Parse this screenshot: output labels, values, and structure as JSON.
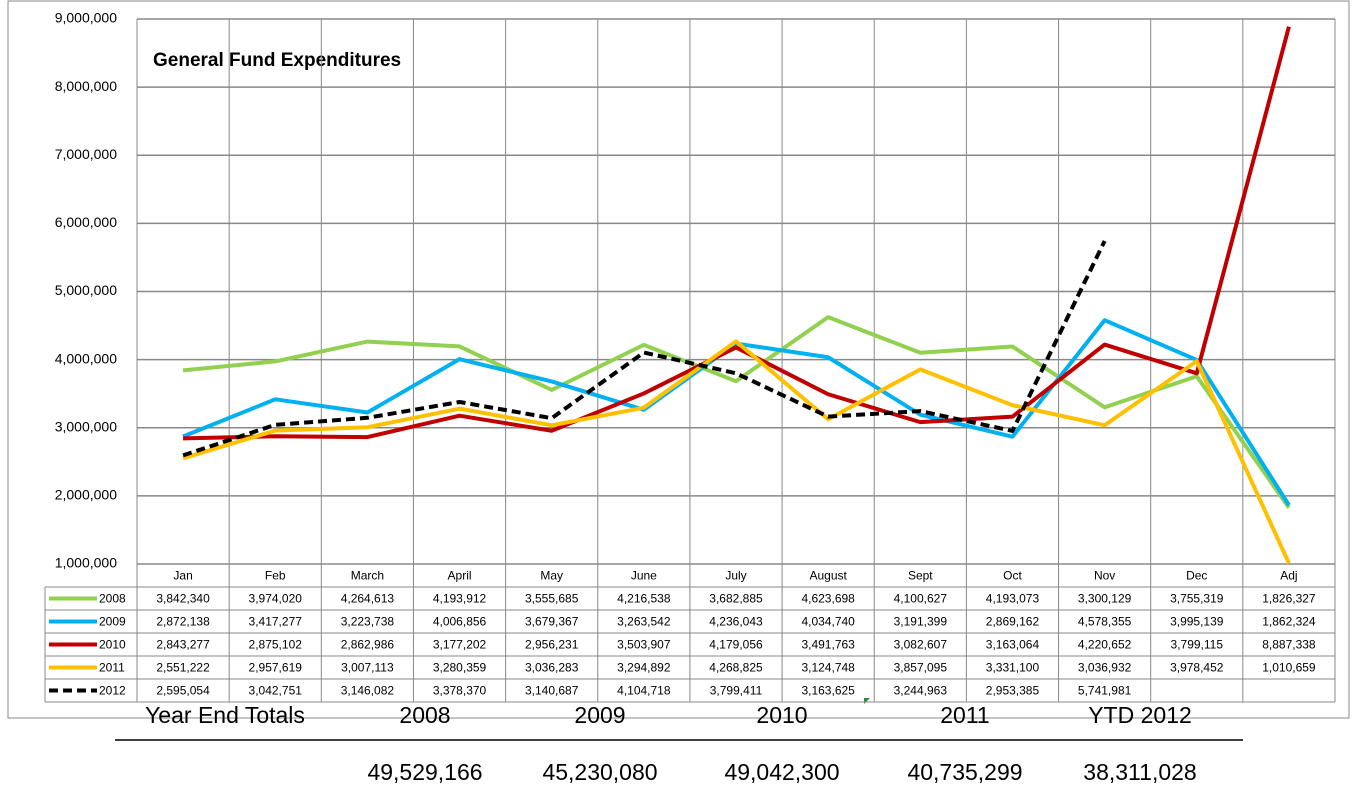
{
  "chart_data": {
    "type": "line",
    "title": "General Fund Expenditures",
    "categories": [
      "Jan",
      "Feb",
      "March",
      "April",
      "May",
      "June",
      "July",
      "August",
      "Sept",
      "Oct",
      "Nov",
      "Dec",
      "Adj"
    ],
    "series": [
      {
        "name": "2008",
        "color": "#92d050",
        "dashed": false,
        "values": [
          3842340,
          3974020,
          4264613,
          4193912,
          3555685,
          4216538,
          3682885,
          4623698,
          4100627,
          4193073,
          3300129,
          3755319,
          1826327
        ],
        "value_labels": [
          "3,842,340",
          "3,974,020",
          "4,264,613",
          "4,193,912",
          "3,555,685",
          "4,216,538",
          "3,682,885",
          "4,623,698",
          "4,100,627",
          "4,193,073",
          "3,300,129",
          "3,755,319",
          "1,826,327"
        ]
      },
      {
        "name": "2009",
        "color": "#00b0f0",
        "dashed": false,
        "values": [
          2872138,
          3417277,
          3223738,
          4006856,
          3679367,
          3263542,
          4236043,
          4034740,
          3191399,
          2869162,
          4578355,
          3995139,
          1862324
        ],
        "value_labels": [
          "2,872,138",
          "3,417,277",
          "3,223,738",
          "4,006,856",
          "3,679,367",
          "3,263,542",
          "4,236,043",
          "4,034,740",
          "3,191,399",
          "2,869,162",
          "4,578,355",
          "3,995,139",
          "1,862,324"
        ]
      },
      {
        "name": "2010",
        "color": "#c00000",
        "dashed": false,
        "values": [
          2843277,
          2875102,
          2862986,
          3177202,
          2956231,
          3503907,
          4179056,
          3491763,
          3082607,
          3163064,
          4220652,
          3799115,
          8887338
        ],
        "value_labels": [
          "2,843,277",
          "2,875,102",
          "2,862,986",
          "3,177,202",
          "2,956,231",
          "3,503,907",
          "4,179,056",
          "3,491,763",
          "3,082,607",
          "3,163,064",
          "4,220,652",
          "3,799,115",
          "8,887,338"
        ]
      },
      {
        "name": "2011",
        "color": "#ffc000",
        "dashed": false,
        "values": [
          2551222,
          2957619,
          3007113,
          3280359,
          3036283,
          3294892,
          4268825,
          3124748,
          3857095,
          3331100,
          3036932,
          3978452,
          1010659
        ],
        "value_labels": [
          "2,551,222",
          "2,957,619",
          "3,007,113",
          "3,280,359",
          "3,036,283",
          "3,294,892",
          "4,268,825",
          "3,124,748",
          "3,857,095",
          "3,331,100",
          "3,036,932",
          "3,978,452",
          "1,010,659"
        ]
      },
      {
        "name": "2012",
        "color": "#000000",
        "dashed": true,
        "values": [
          2595054,
          3042751,
          3146082,
          3378370,
          3140687,
          4104718,
          3799411,
          3163625,
          3244963,
          2953385,
          5741981,
          null,
          null
        ],
        "value_labels": [
          "2,595,054",
          "3,042,751",
          "3,146,082",
          "3,378,370",
          "3,140,687",
          "4,104,718",
          "3,799,411",
          "3,163,625",
          "3,244,963",
          "2,953,385",
          "5,741,981",
          null,
          null
        ]
      }
    ],
    "ylim": [
      1000000,
      9000000
    ],
    "yticks": [
      {
        "value": 1000000,
        "label": "1,000,000"
      },
      {
        "value": 2000000,
        "label": "2,000,000"
      },
      {
        "value": 3000000,
        "label": "3,000,000"
      },
      {
        "value": 4000000,
        "label": "4,000,000"
      },
      {
        "value": 5000000,
        "label": "5,000,000"
      },
      {
        "value": 6000000,
        "label": "6,000,000"
      },
      {
        "value": 7000000,
        "label": "7,000,000"
      },
      {
        "value": 8000000,
        "label": "8,000,000"
      },
      {
        "value": 9000000,
        "label": "9,000,000"
      }
    ],
    "grid": true
  },
  "year_end_totals": {
    "heading": "Year End Totals",
    "columns": [
      "2008",
      "2009",
      "2010",
      "2011",
      "YTD 2012"
    ],
    "totals": [
      "49,529,166",
      "45,230,080",
      "49,042,300",
      "40,735,299",
      "38,311,028"
    ]
  }
}
